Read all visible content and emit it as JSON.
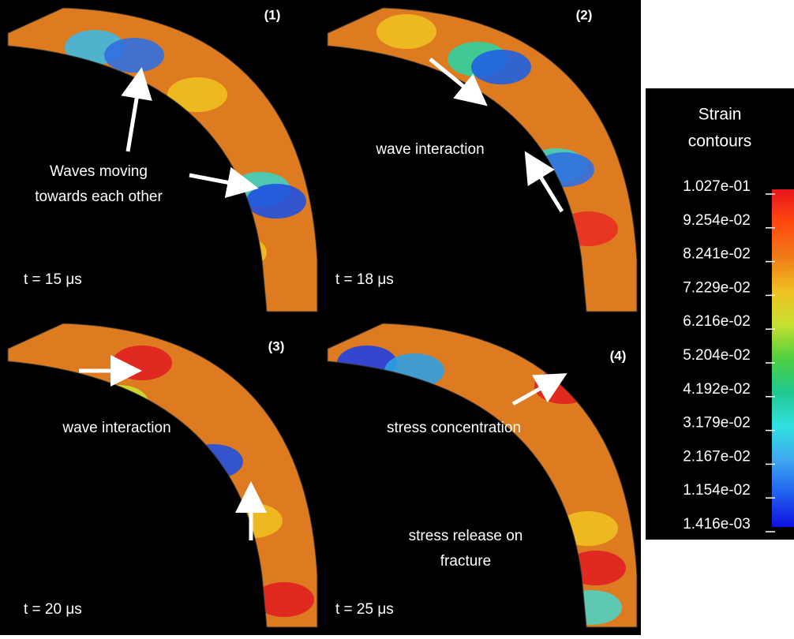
{
  "panels": [
    {
      "label": "(1)",
      "time": "t = 15 μs",
      "annotations": [
        "Waves moving",
        "towards each other"
      ]
    },
    {
      "label": "(2)",
      "time": "t = 18 μs",
      "annotations": [
        "wave interaction"
      ]
    },
    {
      "label": "(3)",
      "time": "t = 20 μs",
      "annotations": [
        "wave interaction"
      ]
    },
    {
      "label": "(4)",
      "time": "t = 25 μs",
      "annotations": [
        "stress concentration",
        "stress release on",
        "fracture"
      ]
    }
  ],
  "legend": {
    "title": [
      "Strain",
      "contours"
    ],
    "values": [
      "1.027e-01",
      "9.254e-02",
      "8.241e-02",
      "7.229e-02",
      "6.216e-02",
      "5.204e-02",
      "4.192e-02",
      "3.179e-02",
      "2.167e-02",
      "1.154e-02",
      "1.416e-03"
    ]
  }
}
